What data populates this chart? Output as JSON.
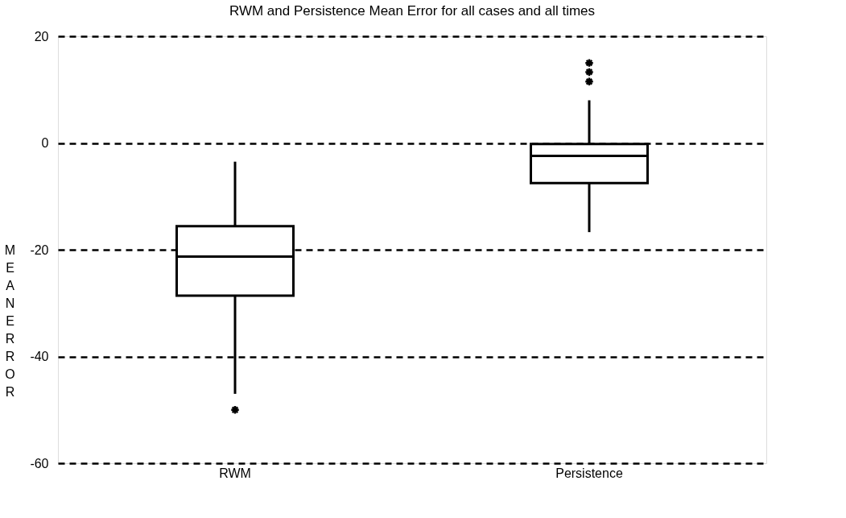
{
  "chart_data": {
    "type": "box",
    "title": "RWM and Persistence Mean Error for all cases and all times",
    "ylabel": "MEAN ERROR",
    "categories": [
      "RWM",
      "Persistence"
    ],
    "boxes": [
      {
        "low": -47,
        "q1": -28.6,
        "median": -21.3,
        "q3": -15.6,
        "high": -3.5,
        "outliers": [
          -50
        ]
      },
      {
        "low": -16.7,
        "q1": -7.5,
        "median": -2.4,
        "q3": -0.2,
        "high": 8,
        "outliers": [
          11.5,
          13.3,
          15
        ]
      }
    ],
    "color": "#000000",
    "ylim": [
      -60,
      20
    ],
    "yticks": [
      -60,
      -40,
      -20,
      0,
      20
    ],
    "grid": "y",
    "line_style": "dashed"
  }
}
